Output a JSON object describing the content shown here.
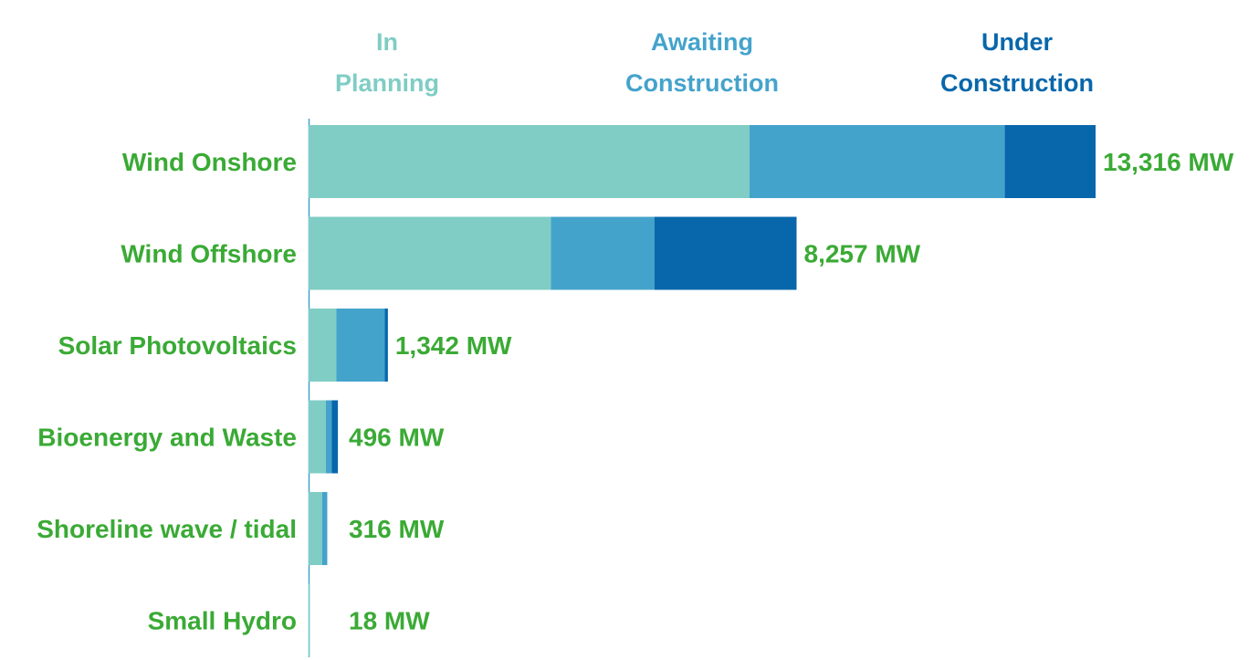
{
  "chart_data": {
    "type": "bar",
    "orientation": "horizontal",
    "stacked": true,
    "title": "",
    "xlabel": "",
    "ylabel": "",
    "xlim": [
      0,
      13316
    ],
    "grid": false,
    "legend_placement": "top",
    "categories": [
      "Wind Onshore",
      "Wind Offshore",
      "Solar Photovoltaics",
      "Bioenergy and Waste",
      "Shoreline wave / tidal",
      "Small Hydro"
    ],
    "series": [
      {
        "name": "In Planning",
        "legend_lines": [
          "In",
          "Planning"
        ],
        "color": "#7fcdc4",
        "values": [
          7460,
          4100,
          470,
          290,
          230,
          18
        ]
      },
      {
        "name": "Awaiting Construction",
        "legend_lines": [
          "Awaiting",
          "Construction"
        ],
        "color": "#44a3cb",
        "values": [
          4320,
          1750,
          820,
          100,
          86,
          0
        ]
      },
      {
        "name": "Under Construction",
        "legend_lines": [
          "Under",
          "Construction"
        ],
        "color": "#0867ab",
        "values": [
          1536,
          2407,
          52,
          106,
          0,
          0
        ]
      }
    ],
    "totals": [
      "13,316 MW",
      "8,257 MW",
      "1,342 MW",
      "496 MW",
      "316 MW",
      "18 MW"
    ]
  }
}
